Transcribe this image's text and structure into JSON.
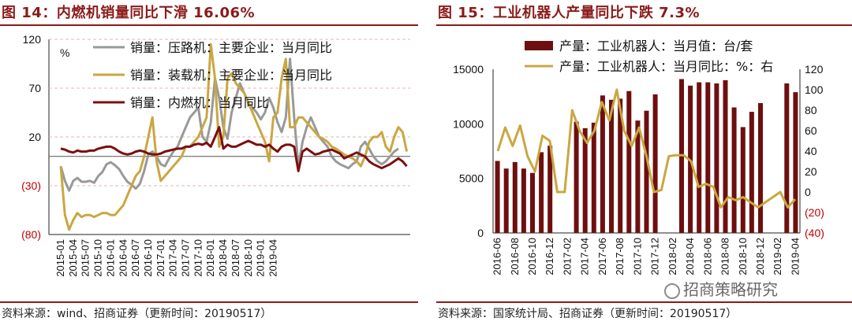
{
  "left": {
    "title": "图 14：内燃机销量同比下滑 16.06%",
    "source": "资料来源：wind、招商证券（更新时间：20190517）"
  },
  "right": {
    "title": "图 15：工业机器人产量同比下跌 7.3%",
    "source": "资料来源：国家统计局、招商证券（更新时间：20190517）"
  },
  "watermark": "招商策略研究",
  "colors": {
    "gray": "#999999",
    "gold": "#c9a741",
    "maroon": "#7b1010",
    "bar": "#6e0f0f",
    "negative": "#c00000",
    "accent": "#8b1a1a"
  },
  "chart_data": [
    {
      "type": "line",
      "ylabel": "%",
      "ylim": [
        -80,
        120
      ],
      "yticks": [
        "120",
        "70",
        "20",
        "(30)",
        "(80)"
      ],
      "ytick_values": [
        120,
        70,
        20,
        -30,
        -80
      ],
      "x_labels": [
        "2015-01",
        "2015-04",
        "2015-07",
        "2015-10",
        "2016-01",
        "2016-04",
        "2016-07",
        "2016-10",
        "2017-01",
        "2017-04",
        "2017-07",
        "2017-10",
        "2018-01",
        "2018-04",
        "2018-07",
        "2018-10",
        "2019-01",
        "2019-04"
      ],
      "x_start": "2015-01",
      "series": [
        {
          "name": "销量：压路机：主要企业：当月同比",
          "color": "gray",
          "values": [
            -10,
            -25,
            -35,
            -25,
            -22,
            -26,
            -26,
            -25,
            -27,
            -20,
            -16,
            -8,
            -6,
            -9,
            -13,
            -20,
            -26,
            -29,
            -33,
            -28,
            -15,
            2,
            5,
            0,
            -8,
            -10,
            -2,
            5,
            10,
            20,
            30,
            40,
            45,
            50,
            20,
            15,
            35,
            80,
            60,
            30,
            18,
            45,
            60,
            75,
            65,
            55,
            50,
            45,
            38,
            45,
            60,
            50,
            35,
            25,
            40,
            100,
            40,
            -10,
            15,
            30,
            40,
            30,
            20,
            15,
            10,
            0,
            -5,
            -8,
            -10,
            -12,
            -8,
            -5,
            10,
            15,
            8,
            0,
            -5,
            -8,
            -5,
            0,
            5,
            8
          ]
        },
        {
          "name": "销量：装载机：主要企业：当月同比",
          "color": "gold",
          "values": [
            -10,
            -60,
            -75,
            -65,
            -58,
            -62,
            -60,
            -60,
            -62,
            -60,
            -58,
            -58,
            -60,
            -60,
            -55,
            -50,
            -40,
            -30,
            -20,
            -15,
            0,
            20,
            40,
            -5,
            -25,
            -20,
            -15,
            -10,
            -5,
            0,
            10,
            10,
            15,
            20,
            30,
            40,
            115,
            80,
            10,
            20,
            80,
            85,
            75,
            70,
            65,
            55,
            45,
            35,
            25,
            15,
            -5,
            40,
            45,
            80,
            100,
            30,
            30,
            40,
            40,
            35,
            30,
            25,
            20,
            18,
            15,
            10,
            8,
            5,
            2,
            0,
            -2,
            -5,
            -10,
            0,
            15,
            20,
            20,
            25,
            10,
            5,
            20,
            30,
            25,
            5
          ]
        },
        {
          "name": "销量：内燃机：当月同比",
          "color": "maroon",
          "values": [
            8,
            7,
            5,
            4,
            6,
            5,
            5,
            6,
            6,
            8,
            9,
            10,
            10,
            8,
            5,
            3,
            2,
            3,
            5,
            6,
            5,
            3,
            2,
            2,
            3,
            5,
            6,
            7,
            8,
            8,
            10,
            10,
            12,
            13,
            12,
            14,
            10,
            20,
            30,
            8,
            12,
            10,
            10,
            12,
            14,
            16,
            14,
            12,
            12,
            10,
            12,
            8,
            5,
            10,
            12,
            12,
            10,
            -15,
            5,
            8,
            5,
            2,
            3,
            5,
            6,
            7,
            5,
            3,
            -2,
            0,
            2,
            4,
            2,
            0,
            -5,
            -8,
            -10,
            -12,
            -10,
            -8,
            -5,
            -2,
            -5,
            -10
          ]
        }
      ],
      "legend": {
        "placement": "top"
      },
      "grid": "horizontal dashed"
    },
    {
      "type": "bar+line",
      "left_ylim": [
        0,
        15000
      ],
      "left_yticks": [
        "15000",
        "10000",
        "5000",
        "0"
      ],
      "left_ytick_values": [
        15000,
        10000,
        5000,
        0
      ],
      "right_ylim": [
        -40,
        120
      ],
      "right_yticks": [
        "120",
        "100",
        "80",
        "60",
        "40",
        "20",
        "0",
        "(20)",
        "(40)"
      ],
      "right_ytick_values": [
        120,
        100,
        80,
        60,
        40,
        20,
        0,
        -20,
        -40
      ],
      "x_labels": [
        "2016-06",
        "2016-08",
        "2016-10",
        "2016-12",
        "2017-02",
        "2017-04",
        "2017-06",
        "2017-08",
        "2017-10",
        "2017-12",
        "2018-02",
        "2018-04",
        "2018-06",
        "2018-08",
        "2018-10",
        "2018-12",
        "2019-02",
        "2019-04"
      ],
      "x_start": "2016-06",
      "series": [
        {
          "name": "产量：工业机器人：当月值：台/套",
          "color": "bar",
          "kind": "bar",
          "values": [
            6600,
            5900,
            6500,
            5900,
            5500,
            7400,
            8000,
            null,
            null,
            10200,
            9600,
            10100,
            12600,
            12200,
            12300,
            13000,
            10300,
            11200,
            12700,
            null,
            null,
            14100,
            13500,
            13800,
            13800,
            13700,
            14000,
            11500,
            9700,
            11100,
            11900,
            null,
            null,
            13700,
            12900
          ]
        },
        {
          "name": "产量：工业机器人：当月同比：%：右",
          "color": "gold",
          "kind": "line",
          "values": [
            40,
            63,
            45,
            65,
            35,
            20,
            55,
            50,
            0,
            0,
            80,
            60,
            48,
            60,
            88,
            70,
            100,
            60,
            45,
            63,
            35,
            0,
            2,
            35,
            36,
            36,
            30,
            5,
            8,
            5,
            -15,
            -5,
            -8,
            -5,
            -10,
            -15,
            -10,
            -5,
            0,
            -15,
            -7
          ]
        }
      ],
      "legend": {
        "placement": "top"
      },
      "grid": "none"
    }
  ]
}
